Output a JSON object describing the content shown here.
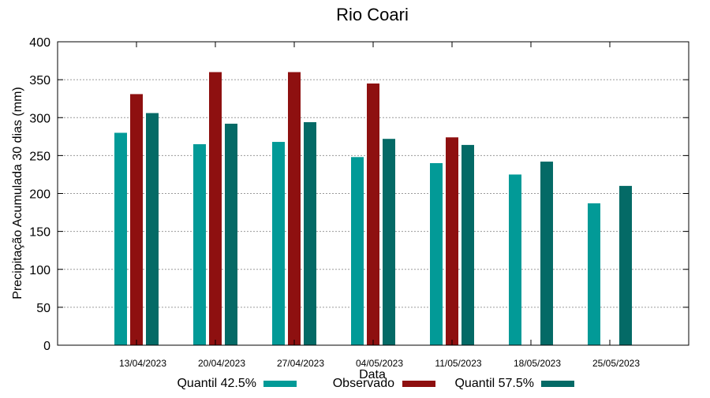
{
  "chart_data": {
    "type": "bar",
    "title": "Rio Coari",
    "xlabel": "Data",
    "ylabel": "Precipitação Acumulada 30 dias (mm)",
    "ylim": [
      0,
      400
    ],
    "yticks": [
      0,
      50,
      100,
      150,
      200,
      250,
      300,
      350,
      400
    ],
    "grid": true,
    "legend_position": "bottom",
    "categories": [
      "13/04/2023",
      "20/04/2023",
      "27/04/2023",
      "04/05/2023",
      "11/05/2023",
      "18/05/2023",
      "25/05/2023"
    ],
    "series": [
      {
        "name": "Quantil 42.5%",
        "color": "#029a97",
        "values": [
          280,
          265,
          268,
          248,
          240,
          225,
          187
        ]
      },
      {
        "name": "Observado",
        "color": "#8e1010",
        "values": [
          331,
          360,
          360,
          345,
          274,
          null,
          null
        ]
      },
      {
        "name": "Quantil 57.5%",
        "color": "#046a66",
        "values": [
          306,
          292,
          294,
          272,
          264,
          242,
          210
        ]
      }
    ]
  }
}
